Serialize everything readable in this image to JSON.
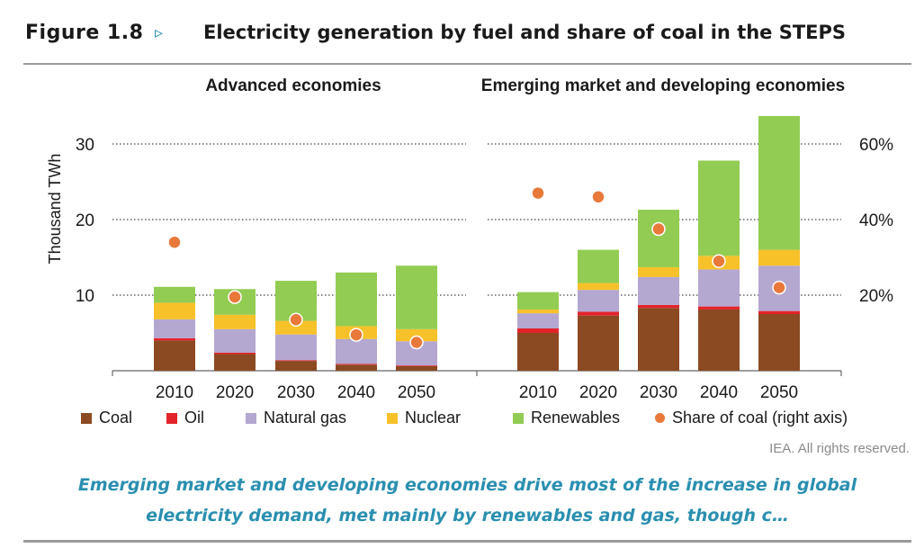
{
  "header": {
    "figure_number": "Figure 1.8",
    "arrow": "▹",
    "title": "Electricity generation by fuel and share of coal in the STEPS"
  },
  "colors": {
    "coal": "#8b4a22",
    "oil": "#e3242b",
    "natural_gas": "#b4a7d0",
    "nuclear": "#f7c12a",
    "renewables": "#92cc52",
    "share_of_coal": "#e8793a",
    "caption": "#2a8fb0"
  },
  "chart_data": {
    "type": "bar",
    "stacked": true,
    "ylabel": "Thousand TWh",
    "ylim": [
      0,
      35
    ],
    "yticks": [
      "10",
      "20",
      "30"
    ],
    "y2lim": [
      0,
      0.7
    ],
    "y2ticks": [
      "20%",
      "40%",
      "60%"
    ],
    "grid": "dotted",
    "panels": [
      {
        "title": "Advanced economies",
        "categories": [
          "2010",
          "2020",
          "2030",
          "2040",
          "2050"
        ],
        "series": [
          {
            "name": "Coal",
            "values": [
              4.0,
              2.2,
              1.3,
              0.8,
              0.6
            ]
          },
          {
            "name": "Oil",
            "values": [
              0.3,
              0.2,
              0.1,
              0.1,
              0.1
            ]
          },
          {
            "name": "Natural gas",
            "values": [
              2.5,
              3.1,
              3.4,
              3.3,
              3.2
            ]
          },
          {
            "name": "Nuclear",
            "values": [
              2.2,
              1.9,
              1.8,
              1.7,
              1.6
            ]
          },
          {
            "name": "Renewables",
            "values": [
              2.1,
              3.4,
              5.3,
              7.1,
              8.4
            ]
          }
        ],
        "share_of_coal": [
          0.34,
          0.195,
          0.135,
          0.095,
          0.075
        ]
      },
      {
        "title": "Emerging market and developing economies",
        "categories": [
          "2010",
          "2020",
          "2030",
          "2040",
          "2050"
        ],
        "series": [
          {
            "name": "Coal",
            "values": [
              5.0,
              7.3,
              8.3,
              8.1,
              7.5
            ]
          },
          {
            "name": "Oil",
            "values": [
              0.6,
              0.5,
              0.4,
              0.4,
              0.4
            ]
          },
          {
            "name": "Natural gas",
            "values": [
              2.0,
              2.9,
              3.7,
              4.9,
              6.0
            ]
          },
          {
            "name": "Nuclear",
            "values": [
              0.5,
              0.9,
              1.3,
              1.8,
              2.1
            ]
          },
          {
            "name": "Renewables",
            "values": [
              2.3,
              4.4,
              7.6,
              12.6,
              17.7
            ]
          }
        ],
        "share_of_coal": [
          0.47,
          0.46,
          0.375,
          0.29,
          0.22
        ]
      }
    ]
  },
  "legend": {
    "items": [
      {
        "key": "coal",
        "label": "Coal",
        "shape": "square"
      },
      {
        "key": "oil",
        "label": "Oil",
        "shape": "square"
      },
      {
        "key": "natural_gas",
        "label": "Natural gas",
        "shape": "square"
      },
      {
        "key": "nuclear",
        "label": "Nuclear",
        "shape": "square"
      },
      {
        "key": "renewables",
        "label": "Renewables",
        "shape": "square"
      },
      {
        "key": "share_of_coal",
        "label": "Share of coal (right axis)",
        "shape": "dot"
      }
    ]
  },
  "footer": {
    "rights": "IEA. All rights reserved.",
    "caption_line1": "Emerging market and developing economies drive most of the increase in global",
    "caption_line2": "electricity demand, met mainly by renewables and gas, though c…"
  }
}
